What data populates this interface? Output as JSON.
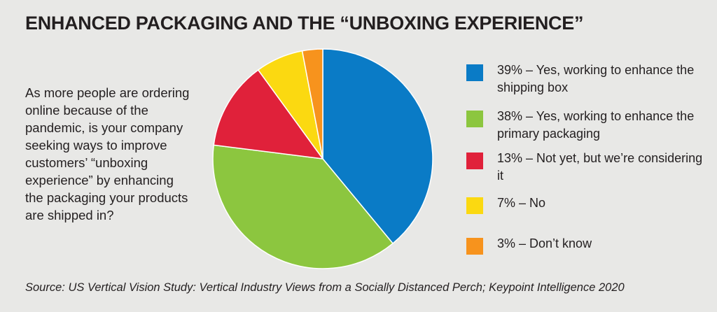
{
  "title": "ENHANCED PACKAGING AND THE “UNBOXING EXPERIENCE”",
  "question": "As more people are ordering online because of the pandemic, is your company seeking ways to improve customers’ “unboxing experience” by enhancing the packaging your products are shipped in?",
  "source": "Source: US Vertical Vision Study: Vertical Industry Views from a Socially Distanced Perch; Keypoint Intelligence 2020",
  "chart_data": {
    "type": "pie",
    "slices": [
      {
        "label": "39% – Yes, working to enhance the shipping box",
        "value": 39,
        "color": "#0a7bc6"
      },
      {
        "label": "38% – Yes, working to enhance the primary packaging",
        "value": 38,
        "color": "#8cc63f"
      },
      {
        "label": "13% – Not yet, but we’re considering it",
        "value": 13,
        "color": "#e0213a"
      },
      {
        "label": "7% – No",
        "value": 7,
        "color": "#fbd911"
      },
      {
        "label": "3% – Don’t know",
        "value": 3,
        "color": "#f7931d"
      }
    ]
  }
}
